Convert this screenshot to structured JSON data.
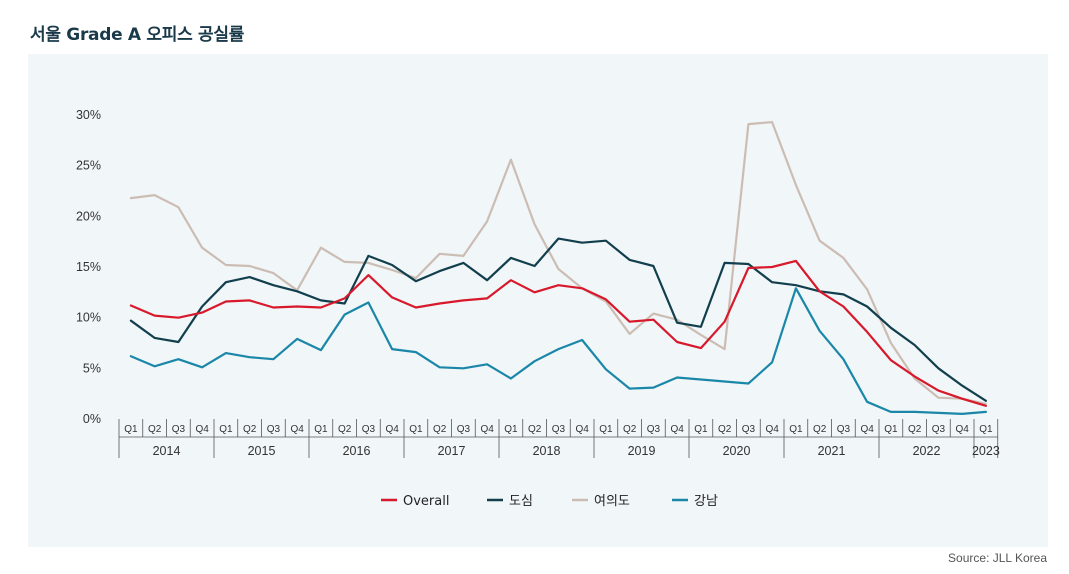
{
  "title": "서울 Grade A 오피스 공실률",
  "source": "Source: JLL Korea",
  "chart_data": {
    "type": "line",
    "title": "서울 Grade A 오피스 공실률",
    "ylim": [
      0,
      30
    ],
    "yticks": [
      "0%",
      "5%",
      "10%",
      "15%",
      "20%",
      "25%",
      "30%"
    ],
    "quarters": [
      "Q1",
      "Q2",
      "Q3",
      "Q4",
      "Q1",
      "Q2",
      "Q3",
      "Q4",
      "Q1",
      "Q2",
      "Q3",
      "Q4",
      "Q1",
      "Q2",
      "Q3",
      "Q4",
      "Q1",
      "Q2",
      "Q3",
      "Q4",
      "Q1",
      "Q2",
      "Q3",
      "Q4",
      "Q1",
      "Q2",
      "Q3",
      "Q4",
      "Q1",
      "Q2",
      "Q3",
      "Q4",
      "Q1",
      "Q2",
      "Q3",
      "Q4",
      "Q1"
    ],
    "years": [
      "2014",
      "2015",
      "2016",
      "2017",
      "2018",
      "2019",
      "2020",
      "2021",
      "2022",
      "2023"
    ],
    "legend_position": "bottom-center",
    "series": [
      {
        "name": "Overall",
        "color": "#d7192b",
        "values": [
          11.2,
          10.2,
          10.0,
          10.5,
          11.6,
          11.7,
          11.0,
          11.1,
          11.0,
          11.9,
          14.2,
          12.0,
          11.0,
          11.4,
          11.7,
          11.9,
          13.7,
          12.5,
          13.2,
          12.9,
          11.8,
          9.6,
          9.8,
          7.6,
          7.0,
          9.6,
          14.9,
          15.0,
          15.6,
          12.6,
          11.1,
          8.6,
          5.8,
          4.2,
          2.8,
          2.0,
          1.3
        ]
      },
      {
        "name": "도심",
        "color": "#123f4d",
        "values": [
          9.7,
          8.0,
          7.6,
          11.1,
          13.5,
          14.0,
          13.2,
          12.6,
          11.7,
          11.4,
          16.1,
          15.2,
          13.6,
          14.6,
          15.4,
          13.7,
          15.9,
          15.1,
          17.8,
          17.4,
          17.6,
          15.7,
          15.1,
          9.5,
          9.1,
          15.4,
          15.3,
          13.5,
          13.2,
          12.6,
          12.3,
          11.1,
          9.0,
          7.3,
          5.0,
          3.3,
          1.8
        ]
      },
      {
        "name": "여의도",
        "color": "#ccbdb4",
        "values": [
          21.8,
          22.1,
          20.9,
          16.9,
          15.2,
          15.1,
          14.4,
          12.7,
          16.9,
          15.5,
          15.4,
          14.7,
          13.9,
          16.3,
          16.1,
          19.5,
          25.6,
          19.2,
          14.8,
          12.9,
          11.6,
          8.4,
          10.4,
          9.8,
          8.3,
          6.9,
          29.1,
          29.3,
          23.1,
          17.6,
          15.9,
          12.8,
          7.5,
          4.0,
          2.1,
          2.0,
          1.5
        ]
      },
      {
        "name": "강남",
        "color": "#1a87a8",
        "values": [
          6.2,
          5.2,
          5.9,
          5.1,
          6.5,
          6.1,
          5.9,
          7.9,
          6.8,
          10.3,
          11.5,
          6.9,
          6.6,
          5.1,
          5.0,
          5.4,
          4.0,
          5.7,
          6.9,
          7.8,
          4.9,
          3.0,
          3.1,
          4.1,
          3.9,
          3.7,
          3.5,
          5.6,
          12.9,
          8.7,
          5.9,
          1.7,
          0.7,
          0.7,
          0.6,
          0.5,
          0.7
        ]
      }
    ]
  }
}
